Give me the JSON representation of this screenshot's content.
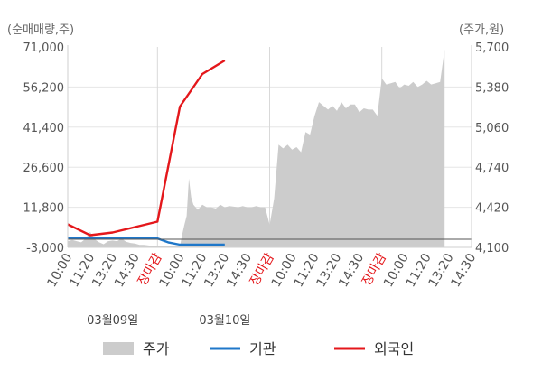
{
  "chart_data": {
    "type": "line",
    "left_axis_unit": "(순매매량,주)",
    "right_axis_unit": "(주가,원)",
    "left_ticks": [
      "71,000",
      "56,200",
      "41,400",
      "26,600",
      "11,800",
      "-3,000"
    ],
    "left_tick_values": [
      71000,
      56200,
      41400,
      26600,
      11800,
      -3000
    ],
    "right_ticks": [
      "5,700",
      "5,380",
      "5,060",
      "4,740",
      "4,420",
      "4,100"
    ],
    "right_tick_values": [
      5700,
      5380,
      5060,
      4740,
      4420,
      4100
    ],
    "left_ylim": [
      -3000,
      71000
    ],
    "right_ylim": [
      4100,
      5700
    ],
    "x_ticks": [
      {
        "label": "10:00",
        "red": false
      },
      {
        "label": "11:20",
        "red": false
      },
      {
        "label": "13:20",
        "red": false
      },
      {
        "label": "14:30",
        "red": false
      },
      {
        "label": "장마감",
        "red": true
      },
      {
        "label": "10:00",
        "red": false
      },
      {
        "label": "11:20",
        "red": false
      },
      {
        "label": "13:20",
        "red": false
      },
      {
        "label": "14:30",
        "red": false
      },
      {
        "label": "장마감",
        "red": true
      },
      {
        "label": "10:00",
        "red": false
      },
      {
        "label": "11:20",
        "red": false
      },
      {
        "label": "13:20",
        "red": false
      },
      {
        "label": "14:30",
        "red": false
      },
      {
        "label": "장마감",
        "red": true
      },
      {
        "label": "10:00",
        "red": false
      },
      {
        "label": "11:20",
        "red": false
      },
      {
        "label": "13:20",
        "red": false
      },
      {
        "label": "14:30",
        "red": false
      }
    ],
    "dates": [
      "03월09일",
      "03월10일"
    ],
    "price_series": {
      "name": "주가",
      "color": "#cccccc",
      "x": [
        0,
        0.2,
        0.4,
        0.6,
        0.8,
        1.0,
        1.2,
        1.4,
        1.6,
        1.8,
        2.0,
        2.2,
        2.4,
        2.6,
        2.8,
        3.0,
        3.2,
        3.4,
        3.6,
        3.8,
        4.0,
        4.2,
        4.4,
        4.5,
        4.6,
        4.7,
        4.8,
        4.9,
        5.0,
        5.1,
        5.2,
        5.3,
        5.4,
        5.5,
        5.6,
        5.7,
        5.8,
        6.0,
        6.2,
        6.4,
        6.6,
        6.8,
        7.0,
        7.2,
        7.4,
        7.6,
        7.8,
        8.0,
        8.2,
        8.4,
        8.6,
        8.8,
        9.0,
        9.2,
        9.4,
        9.6,
        9.8,
        10.0,
        10.2,
        10.4,
        10.6,
        10.8,
        11.0,
        11.2,
        11.4,
        11.6,
        11.8,
        12.0,
        12.2,
        12.4,
        12.6,
        12.8,
        13.0,
        13.2,
        13.4,
        13.6,
        13.8,
        14.0,
        14.2,
        14.4,
        14.6,
        14.8,
        15.0,
        15.2,
        15.4,
        15.6,
        15.8,
        16.0,
        16.2,
        16.4,
        16.6,
        16.8
      ],
      "y": [
        4150,
        4160,
        4150,
        4140,
        4170,
        4225,
        4165,
        4140,
        4125,
        4150,
        4155,
        4150,
        4170,
        4145,
        4135,
        4130,
        4120,
        4120,
        4115,
        4110,
        4110,
        4110,
        4110,
        4110,
        4110,
        4110,
        4110,
        4110,
        4110,
        4200,
        4280,
        4350,
        4650,
        4500,
        4440,
        4420,
        4400,
        4440,
        4420,
        4420,
        4410,
        4440,
        4420,
        4430,
        4425,
        4420,
        4430,
        4420,
        4420,
        4430,
        4420,
        4420,
        4280,
        4490,
        4920,
        4890,
        4920,
        4880,
        4900,
        4860,
        5020,
        5000,
        5150,
        5260,
        5230,
        5200,
        5230,
        5190,
        5260,
        5210,
        5240,
        5240,
        5180,
        5210,
        5200,
        5200,
        5150,
        5450,
        5400,
        5410,
        5420,
        5370,
        5400,
        5390,
        5420,
        5380,
        5400,
        5430,
        5400,
        5410,
        5420,
        5680
      ]
    },
    "series": [
      {
        "name": "기관",
        "color": "#1f77c9",
        "x": [
          0,
          1,
          2,
          3,
          4,
          4.5,
          5,
          6,
          7
        ],
        "y": [
          300,
          300,
          300,
          300,
          300,
          -1200,
          -2000,
          -2000,
          -2000
        ]
      },
      {
        "name": "외국인",
        "color": "#e4171b",
        "x": [
          0,
          1,
          2,
          3,
          4,
          5,
          6,
          7
        ],
        "y": [
          5500,
          1500,
          2500,
          4500,
          6500,
          49000,
          61000,
          66000
        ]
      }
    ],
    "legend": [
      {
        "name": "주가",
        "kind": "area",
        "color": "#cccccc"
      },
      {
        "name": "기관",
        "kind": "line",
        "color": "#1f77c9"
      },
      {
        "name": "외국인",
        "kind": "line",
        "color": "#e4171b"
      }
    ],
    "grid": true,
    "legend_position": "bottom"
  }
}
